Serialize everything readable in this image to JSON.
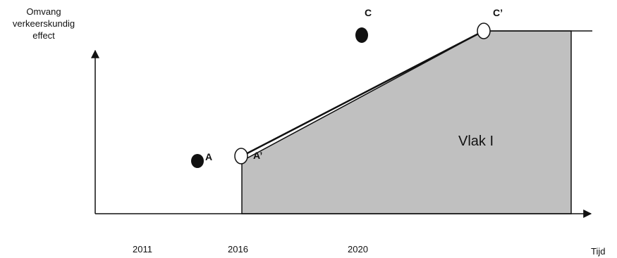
{
  "axes": {
    "y_label_lines": [
      "Omvang",
      "verkeerskundig",
      "effect"
    ],
    "x_label": "Tijd",
    "years": [
      "2011",
      "2016",
      "2020"
    ]
  },
  "points": {
    "A": "A",
    "A_prime": "A’",
    "C": "C",
    "C_prime": "C’"
  },
  "area": {
    "label": "Vlak I",
    "fill_color": "#c0c0c0"
  },
  "colors": {
    "line": "#111111",
    "point_filled": "#111111",
    "point_open_fill": "#ffffff"
  }
}
